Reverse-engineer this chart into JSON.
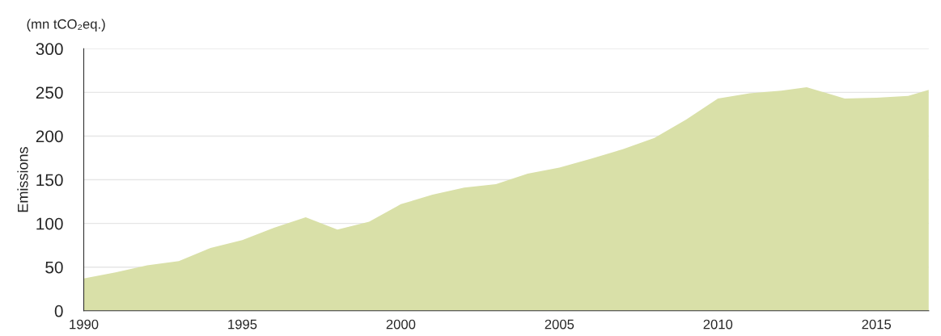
{
  "chart_data": {
    "type": "area",
    "ylabel": "Emissions",
    "annotations": [
      "(mn tCO₂eq.)"
    ],
    "x": [
      1990,
      1991,
      1992,
      1993,
      1994,
      1995,
      1996,
      1997,
      1998,
      1999,
      2000,
      2001,
      2002,
      2003,
      2004,
      2005,
      2006,
      2007,
      2008,
      2009,
      2010,
      2011,
      2012,
      2012.8,
      2014,
      2015,
      2016,
      2016.65
    ],
    "series": [
      {
        "color": "#d9e0a8",
        "values": [
          37,
          44,
          52,
          57,
          72,
          81,
          95,
          107,
          93,
          102,
          122,
          133,
          141,
          145,
          157,
          164,
          174,
          185,
          198,
          219,
          243,
          249,
          252,
          256,
          243,
          244,
          246,
          253
        ]
      }
    ],
    "xlim": [
      1990,
      2016.65
    ],
    "xticks": [
      1990,
      1995,
      2000,
      2005,
      2010,
      2015
    ],
    "ylim": [
      0,
      300
    ],
    "yticks": [
      0,
      50,
      100,
      150,
      200,
      250,
      300
    ],
    "grid": "y"
  }
}
